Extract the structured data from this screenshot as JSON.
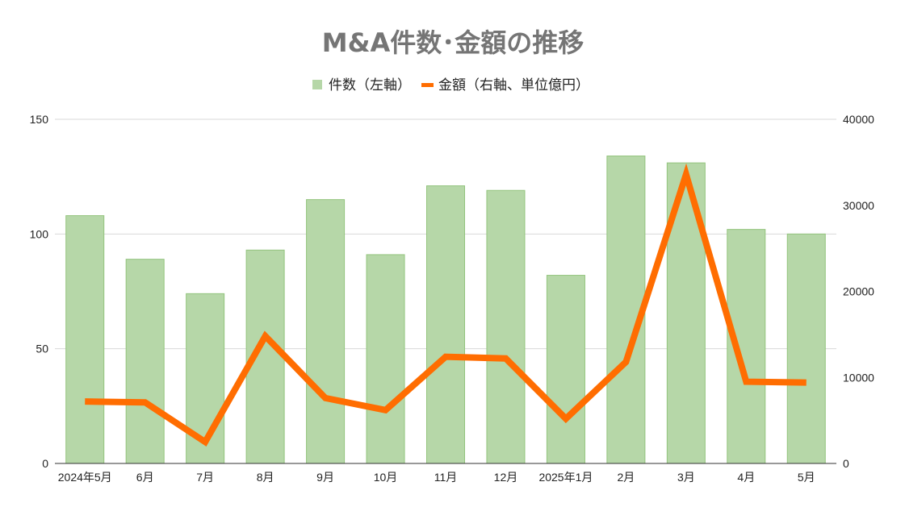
{
  "chart_data": {
    "type": "bar",
    "title": "M&A件数･金額の推移",
    "categories": [
      "2024年5月",
      "6月",
      "7月",
      "8月",
      "9月",
      "10月",
      "11月",
      "12月",
      "2025年1月",
      "2月",
      "3月",
      "4月",
      "5月"
    ],
    "series": [
      {
        "name": "件数（左軸）",
        "type": "bar",
        "axis": "left",
        "color": "#b6d7a8",
        "values": [
          108,
          89,
          74,
          93,
          115,
          91,
          121,
          119,
          82,
          134,
          131,
          102,
          100
        ]
      },
      {
        "name": "金額（右軸、単位億円）",
        "type": "line",
        "axis": "right",
        "color": "#ff6d01",
        "values": [
          7200,
          7100,
          2500,
          14800,
          7600,
          6200,
          12400,
          12200,
          5200,
          11800,
          33600,
          9500,
          9400
        ]
      }
    ],
    "y_left": {
      "min": 0,
      "max": 150,
      "ticks": [
        0,
        50,
        100,
        150
      ]
    },
    "y_right": {
      "min": 0,
      "max": 40000,
      "ticks": [
        0,
        10000,
        20000,
        30000,
        40000
      ]
    },
    "legend_position": "top",
    "grid": true
  }
}
